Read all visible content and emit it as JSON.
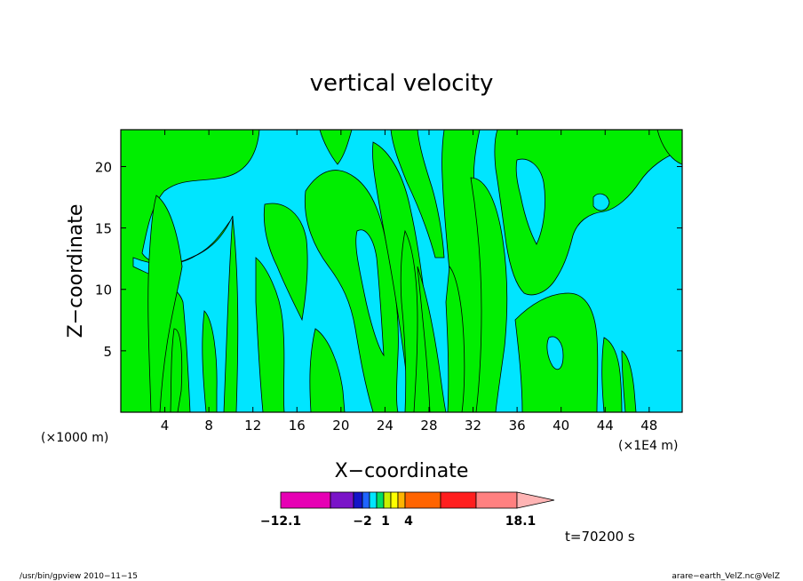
{
  "chart_data": {
    "type": "heatmap",
    "title": "vertical velocity",
    "xlabel": "X−coordinate",
    "ylabel": "Z−coordinate",
    "x_units_label": "(×1000 m)",
    "x_units_label_secondary": "(×1E4 m)",
    "x_ticks": [
      "4",
      "8",
      "12",
      "16",
      "20",
      "24",
      "28",
      "32",
      "36",
      "40",
      "44",
      "48"
    ],
    "y_ticks": [
      "5",
      "10",
      "15",
      "20"
    ],
    "xlim": [
      0,
      51
    ],
    "ylim": [
      0,
      23
    ],
    "colorbar": {
      "labels": [
        "−12.1",
        "−2",
        "1",
        "4",
        "18.1"
      ],
      "colors": [
        "#e600b4",
        "#7a14c8",
        "#1414c8",
        "#1e64ff",
        "#00e5ff",
        "#00e064",
        "#c8f000",
        "#ffff00",
        "#ffb400",
        "#ff6400",
        "#ff1e1e",
        "#ff8080",
        "#ffb4b4"
      ]
    },
    "fields": {
      "positive_color": "#00ee00",
      "negative_color": "#00e5ff"
    },
    "time_label": "t=70200 s"
  },
  "footer": {
    "left": "/usr/bin/gpview   2010−11−15",
    "right": "arare−earth_VelZ.nc@VelZ"
  }
}
